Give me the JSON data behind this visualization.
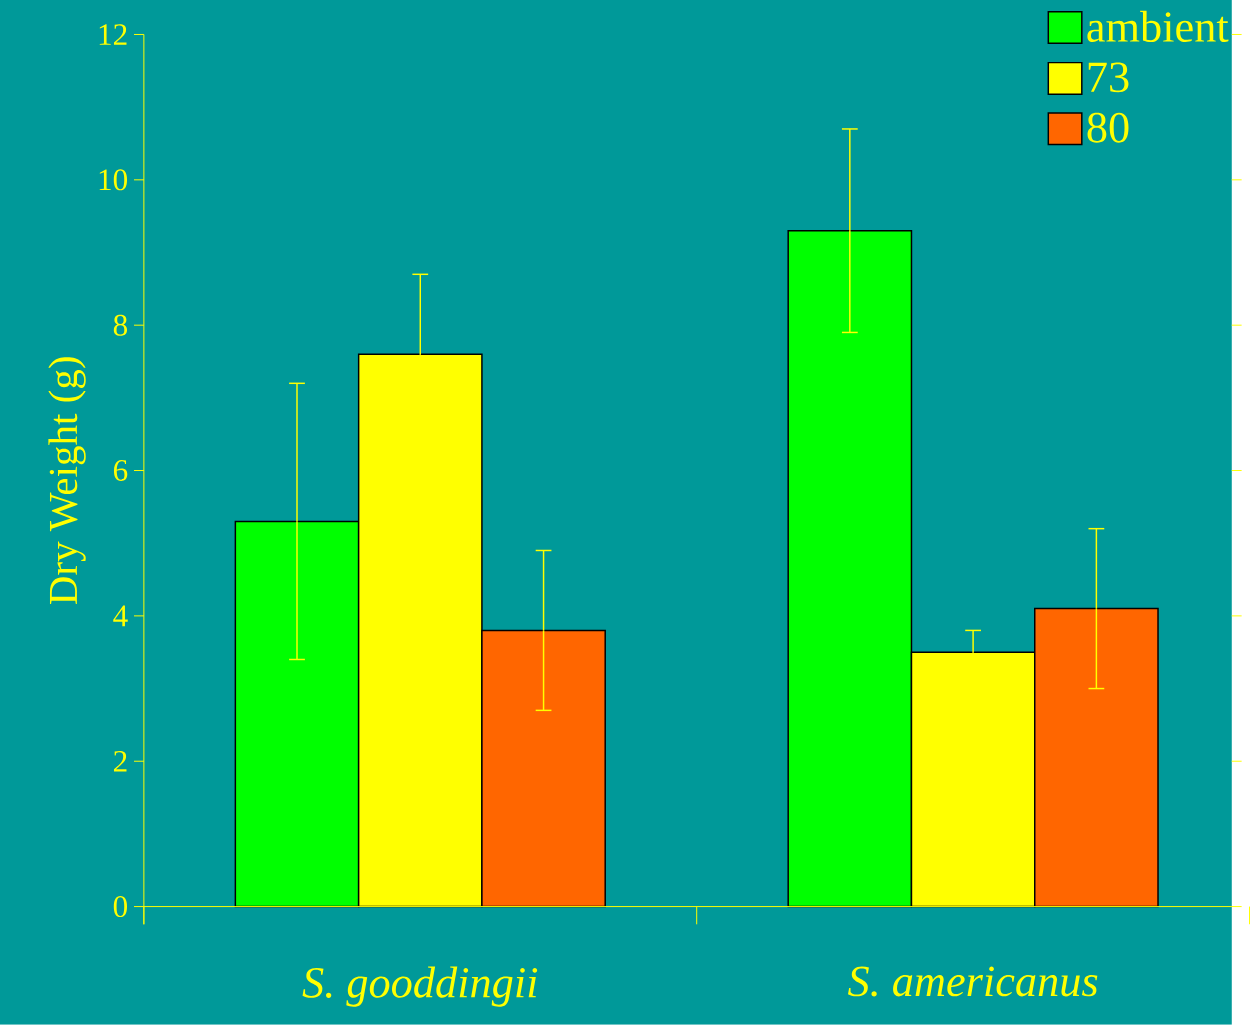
{
  "chart_data": {
    "type": "bar",
    "ylabel": "Dry Weight (g)",
    "categories": [
      "S. gooddingii",
      "S. americanus"
    ],
    "series": [
      {
        "name": "ambient",
        "color": "#00ff00",
        "values": [
          5.3,
          9.3
        ],
        "errors": [
          1.9,
          1.4
        ]
      },
      {
        "name": "73",
        "color": "#ffff00",
        "values": [
          7.6,
          3.5
        ],
        "errors": [
          1.1,
          0.3
        ]
      },
      {
        "name": "80",
        "color": "#ff6600",
        "values": [
          3.8,
          4.1
        ],
        "errors": [
          1.1,
          1.1
        ]
      }
    ],
    "ylim": [
      0,
      12
    ],
    "yticks": [
      0,
      2,
      4,
      6,
      8,
      10,
      12
    ],
    "legend": "top right"
  }
}
